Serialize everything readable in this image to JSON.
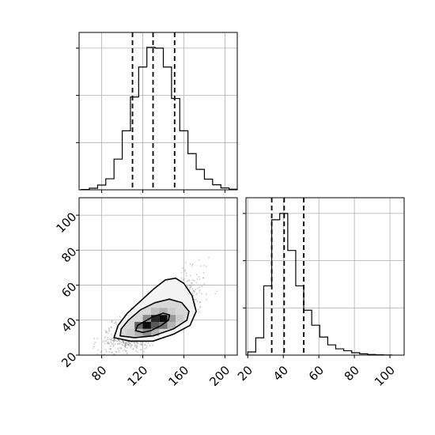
{
  "chart_data": {
    "type": "corner",
    "grid": true,
    "panels": {
      "hist_x": {
        "type": "histogram-step",
        "xlim": [
          58,
          212
        ],
        "ylim": [
          0,
          1000
        ],
        "bins": [
          {
            "x0": 60,
            "x1": 68,
            "count": 2
          },
          {
            "x0": 68,
            "x1": 76,
            "count": 10
          },
          {
            "x0": 76,
            "x1": 84,
            "count": 30
          },
          {
            "x0": 84,
            "x1": 92,
            "count": 70
          },
          {
            "x0": 92,
            "x1": 100,
            "count": 195
          },
          {
            "x0": 100,
            "x1": 108,
            "count": 375
          },
          {
            "x0": 108,
            "x1": 116,
            "count": 590
          },
          {
            "x0": 116,
            "x1": 124,
            "count": 780
          },
          {
            "x0": 124,
            "x1": 132,
            "count": 905
          },
          {
            "x0": 132,
            "x1": 140,
            "count": 900
          },
          {
            "x0": 140,
            "x1": 148,
            "count": 780
          },
          {
            "x0": 148,
            "x1": 156,
            "count": 580
          },
          {
            "x0": 156,
            "x1": 164,
            "count": 375
          },
          {
            "x0": 164,
            "x1": 172,
            "count": 230
          },
          {
            "x0": 172,
            "x1": 180,
            "count": 130
          },
          {
            "x0": 180,
            "x1": 188,
            "count": 68
          },
          {
            "x0": 188,
            "x1": 196,
            "count": 32
          },
          {
            "x0": 196,
            "x1": 204,
            "count": 12
          },
          {
            "x0": 204,
            "x1": 212,
            "count": 4
          }
        ],
        "quantiles": [
          110,
          130,
          151
        ],
        "xticks": [
          80,
          120,
          160,
          200
        ],
        "yticks": [
          300,
          600,
          900
        ]
      },
      "hist_y": {
        "type": "histogram-step",
        "xlim": [
          19,
          108
        ],
        "ylim": [
          0,
          1000
        ],
        "bins": [
          {
            "x0": 20,
            "x1": 24.5,
            "count": 20
          },
          {
            "x0": 24.5,
            "x1": 29,
            "count": 110
          },
          {
            "x0": 29,
            "x1": 33.5,
            "count": 440
          },
          {
            "x0": 33.5,
            "x1": 38,
            "count": 860
          },
          {
            "x0": 38,
            "x1": 42.5,
            "count": 900
          },
          {
            "x0": 42.5,
            "x1": 47,
            "count": 665
          },
          {
            "x0": 47,
            "x1": 51.5,
            "count": 440
          },
          {
            "x0": 51.5,
            "x1": 56,
            "count": 285
          },
          {
            "x0": 56,
            "x1": 60.5,
            "count": 190
          },
          {
            "x0": 60.5,
            "x1": 65,
            "count": 115
          },
          {
            "x0": 65,
            "x1": 69.5,
            "count": 65
          },
          {
            "x0": 69.5,
            "x1": 74,
            "count": 40
          },
          {
            "x0": 74,
            "x1": 78.5,
            "count": 28
          },
          {
            "x0": 78.5,
            "x1": 83,
            "count": 15
          },
          {
            "x0": 83,
            "x1": 87.5,
            "count": 8
          },
          {
            "x0": 87.5,
            "x1": 92,
            "count": 4
          },
          {
            "x0": 92,
            "x1": 96.5,
            "count": 2
          },
          {
            "x0": 96.5,
            "x1": 101,
            "count": 1
          }
        ],
        "quantiles": [
          33.5,
          40.5,
          51.5
        ],
        "xticks": [
          20,
          40,
          60,
          80,
          100
        ],
        "xtick_labels": [
          "20",
          "40",
          "60",
          "80",
          "100"
        ],
        "yticks": [
          300,
          600,
          900
        ]
      },
      "scatter_2d": {
        "type": "2d-density",
        "xlim": [
          58,
          212
        ],
        "ylim": [
          20,
          110
        ],
        "xticks": [
          80,
          120,
          160,
          200
        ],
        "xtick_labels": [
          "80",
          "120",
          "160",
          "200"
        ],
        "yticks": [
          20,
          40,
          60,
          80,
          100
        ],
        "ytick_labels": [
          "20",
          "40",
          "60",
          "80",
          "100"
        ],
        "peak": [
          122,
          36
        ],
        "contours": [
          {
            "level": "inner",
            "points": [
              [
                113,
                34
              ],
              [
                120,
                33
              ],
              [
                128,
                34
              ],
              [
                138,
                37
              ],
              [
                145,
                40
              ],
              [
                146,
                43
              ],
              [
                140,
                44
              ],
              [
                130,
                42
              ],
              [
                121,
                39
              ],
              [
                115,
                37
              ]
            ]
          },
          {
            "level": "middle",
            "points": [
              [
                98,
                31
              ],
              [
                112,
                30
              ],
              [
                130,
                31
              ],
              [
                150,
                35
              ],
              [
                163,
                40
              ],
              [
                165,
                45
              ],
              [
                158,
                50
              ],
              [
                146,
                52
              ],
              [
                132,
                50
              ],
              [
                118,
                46
              ],
              [
                106,
                40
              ],
              [
                99,
                35
              ]
            ]
          },
          {
            "level": "outer",
            "points": [
              [
                92,
                30
              ],
              [
                108,
                28
              ],
              [
                130,
                28
              ],
              [
                150,
                32
              ],
              [
                166,
                37
              ],
              [
                172,
                45
              ],
              [
                168,
                54
              ],
              [
                160,
                61
              ],
              [
                152,
                64
              ],
              [
                142,
                63
              ],
              [
                131,
                58
              ],
              [
                118,
                51
              ],
              [
                105,
                44
              ],
              [
                96,
                37
              ]
            ]
          }
        ],
        "density_bins": [
          {
            "x": 120,
            "y": 35,
            "w": 8,
            "h": 4,
            "shade": 0.05
          },
          {
            "x": 128,
            "y": 35,
            "w": 8,
            "h": 4,
            "shade": 0.35
          },
          {
            "x": 128,
            "y": 39,
            "w": 8,
            "h": 4,
            "shade": 0.15
          },
          {
            "x": 136,
            "y": 39,
            "w": 8,
            "h": 4,
            "shade": 0.05
          },
          {
            "x": 136,
            "y": 35,
            "w": 8,
            "h": 4,
            "shade": 0.45
          },
          {
            "x": 112,
            "y": 35,
            "w": 8,
            "h": 4,
            "shade": 0.4
          },
          {
            "x": 120,
            "y": 31,
            "w": 8,
            "h": 4,
            "shade": 0.55
          },
          {
            "x": 112,
            "y": 31,
            "w": 8,
            "h": 4,
            "shade": 0.7
          },
          {
            "x": 128,
            "y": 31,
            "w": 8,
            "h": 4,
            "shade": 0.7
          },
          {
            "x": 144,
            "y": 39,
            "w": 8,
            "h": 4,
            "shade": 0.6
          },
          {
            "x": 144,
            "y": 35,
            "w": 8,
            "h": 4,
            "shade": 0.7
          },
          {
            "x": 120,
            "y": 39,
            "w": 8,
            "h": 4,
            "shade": 0.55
          },
          {
            "x": 136,
            "y": 43,
            "w": 8,
            "h": 4,
            "shade": 0.7
          },
          {
            "x": 128,
            "y": 43,
            "w": 8,
            "h": 4,
            "shade": 0.75
          },
          {
            "x": 104,
            "y": 31,
            "w": 8,
            "h": 4,
            "shade": 0.8
          },
          {
            "x": 144,
            "y": 43,
            "w": 8,
            "h": 4,
            "shade": 0.8
          },
          {
            "x": 152,
            "y": 39,
            "w": 8,
            "h": 4,
            "shade": 0.8
          }
        ]
      }
    }
  }
}
